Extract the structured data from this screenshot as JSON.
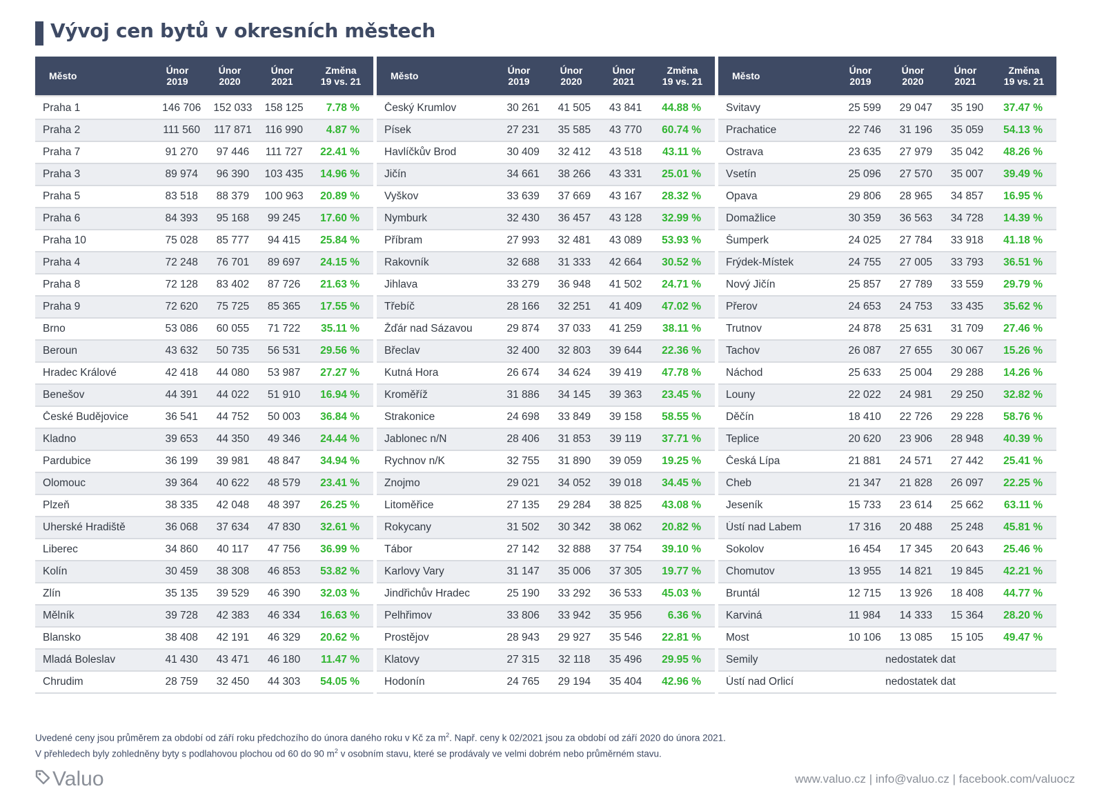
{
  "title": "Vývoj cen bytů v okresních městech",
  "headers": {
    "city": "Město",
    "y2019": [
      "Únor",
      "2019"
    ],
    "y2020": [
      "Únor",
      "2020"
    ],
    "y2021": [
      "Únor",
      "2021"
    ],
    "change": [
      "Změna",
      "19 vs. 21"
    ]
  },
  "tables": [
    [
      [
        "Praha 1",
        "146 706",
        "152 033",
        "158 125",
        "7.78 %"
      ],
      [
        "Praha 2",
        "111 560",
        "117 871",
        "116 990",
        "4.87 %"
      ],
      [
        "Praha 7",
        "91 270",
        "97 446",
        "111 727",
        "22.41 %"
      ],
      [
        "Praha 3",
        "89 974",
        "96 390",
        "103 435",
        "14.96 %"
      ],
      [
        "Praha 5",
        "83 518",
        "88 379",
        "100 963",
        "20.89 %"
      ],
      [
        "Praha 6",
        "84 393",
        "95 168",
        "99 245",
        "17.60 %"
      ],
      [
        "Praha 10",
        "75 028",
        "85 777",
        "94 415",
        "25.84 %"
      ],
      [
        "Praha 4",
        "72 248",
        "76 701",
        "89 697",
        "24.15 %"
      ],
      [
        "Praha 8",
        "72 128",
        "83 402",
        "87 726",
        "21.63 %"
      ],
      [
        "Praha 9",
        "72 620",
        "75 725",
        "85 365",
        "17.55 %"
      ],
      [
        "Brno",
        "53 086",
        "60 055",
        "71 722",
        "35.11 %"
      ],
      [
        "Beroun",
        "43 632",
        "50 735",
        "56 531",
        "29.56 %"
      ],
      [
        "Hradec Králové",
        "42 418",
        "44 080",
        "53 987",
        "27.27 %"
      ],
      [
        "Benešov",
        "44 391",
        "44 022",
        "51 910",
        "16.94 %"
      ],
      [
        "České Budějovice",
        "36 541",
        "44 752",
        "50 003",
        "36.84 %"
      ],
      [
        "Kladno",
        "39 653",
        "44 350",
        "49 346",
        "24.44 %"
      ],
      [
        "Pardubice",
        "36 199",
        "39 981",
        "48 847",
        "34.94 %"
      ],
      [
        "Olomouc",
        "39 364",
        "40 622",
        "48 579",
        "23.41 %"
      ],
      [
        "Plzeň",
        "38 335",
        "42 048",
        "48 397",
        "26.25 %"
      ],
      [
        "Uherské Hradiště",
        "36 068",
        "37 634",
        "47 830",
        "32.61 %"
      ],
      [
        "Liberec",
        "34 860",
        "40 117",
        "47 756",
        "36.99 %"
      ],
      [
        "Kolín",
        "30 459",
        "38 308",
        "46 853",
        "53.82 %"
      ],
      [
        "Zlín",
        "35 135",
        "39 529",
        "46 390",
        "32.03 %"
      ],
      [
        "Mělník",
        "39 728",
        "42 383",
        "46 334",
        "16.63 %"
      ],
      [
        "Blansko",
        "38 408",
        "42 191",
        "46 329",
        "20.62 %"
      ],
      [
        "Mladá Boleslav",
        "41 430",
        "43 471",
        "46 180",
        "11.47 %"
      ],
      [
        "Chrudim",
        "28 759",
        "32 450",
        "44 303",
        "54.05 %"
      ]
    ],
    [
      [
        "Český Krumlov",
        "30 261",
        "41 505",
        "43 841",
        "44.88 %"
      ],
      [
        "Písek",
        "27 231",
        "35 585",
        "43 770",
        "60.74 %"
      ],
      [
        "Havlíčkův Brod",
        "30 409",
        "32 412",
        "43 518",
        "43.11 %"
      ],
      [
        "Jičín",
        "34 661",
        "38 266",
        "43 331",
        "25.01 %"
      ],
      [
        "Vyškov",
        "33 639",
        "37 669",
        "43 167",
        "28.32 %"
      ],
      [
        "Nymburk",
        "32 430",
        "36 457",
        "43 128",
        "32.99 %"
      ],
      [
        "Příbram",
        "27 993",
        "32 481",
        "43 089",
        "53.93 %"
      ],
      [
        "Rakovník",
        "32 688",
        "31 333",
        "42 664",
        "30.52 %"
      ],
      [
        "Jihlava",
        "33 279",
        "36 948",
        "41 502",
        "24.71 %"
      ],
      [
        "Třebíč",
        "28 166",
        "32 251",
        "41 409",
        "47.02 %"
      ],
      [
        "Žďár nad Sázavou",
        "29 874",
        "37 033",
        "41 259",
        "38.11 %"
      ],
      [
        "Břeclav",
        "32 400",
        "32 803",
        "39 644",
        "22.36 %"
      ],
      [
        "Kutná Hora",
        "26 674",
        "34 624",
        "39 419",
        "47.78 %"
      ],
      [
        "Kroměříž",
        "31 886",
        "34 145",
        "39 363",
        "23.45 %"
      ],
      [
        "Strakonice",
        "24 698",
        "33 849",
        "39 158",
        "58.55 %"
      ],
      [
        "Jablonec n/N",
        "28 406",
        "31 853",
        "39 119",
        "37.71 %"
      ],
      [
        "Rychnov n/K",
        "32 755",
        "31 890",
        "39 059",
        "19.25 %"
      ],
      [
        "Znojmo",
        "29 021",
        "34 052",
        "39 018",
        "34.45 %"
      ],
      [
        "Litoměřice",
        "27 135",
        "29 284",
        "38 825",
        "43.08 %"
      ],
      [
        "Rokycany",
        "31 502",
        "30 342",
        "38 062",
        "20.82 %"
      ],
      [
        "Tábor",
        "27 142",
        "32 888",
        "37 754",
        "39.10 %"
      ],
      [
        "Karlovy Vary",
        "31 147",
        "35 006",
        "37 305",
        "19.77 %"
      ],
      [
        "Jindřichův Hradec",
        "25 190",
        "33 292",
        "36 533",
        "45.03 %"
      ],
      [
        "Pelhřimov",
        "33 806",
        "33 942",
        "35 956",
        "6.36 %"
      ],
      [
        "Prostějov",
        "28 943",
        "29 927",
        "35 546",
        "22.81 %"
      ],
      [
        "Klatovy",
        "27 315",
        "32 118",
        "35 496",
        "29.95 %"
      ],
      [
        "Hodonín",
        "24 765",
        "29 194",
        "35 404",
        "42.96 %"
      ]
    ],
    [
      [
        "Svitavy",
        "25 599",
        "29 047",
        "35 190",
        "37.47 %"
      ],
      [
        "Prachatice",
        "22 746",
        "31 196",
        "35 059",
        "54.13 %"
      ],
      [
        "Ostrava",
        "23 635",
        "27 979",
        "35 042",
        "48.26 %"
      ],
      [
        "Vsetín",
        "25 096",
        "27 570",
        "35 007",
        "39.49 %"
      ],
      [
        "Opava",
        "29 806",
        "28 965",
        "34 857",
        "16.95 %"
      ],
      [
        "Domažlice",
        "30 359",
        "36 563",
        "34 728",
        "14.39 %"
      ],
      [
        "Šumperk",
        "24 025",
        "27 784",
        "33 918",
        "41.18 %"
      ],
      [
        "Frýdek-Místek",
        "24 755",
        "27 005",
        "33 793",
        "36.51 %"
      ],
      [
        "Nový Jičín",
        "25 857",
        "27 789",
        "33 559",
        "29.79 %"
      ],
      [
        "Přerov",
        "24 653",
        "24 753",
        "33 435",
        "35.62 %"
      ],
      [
        "Trutnov",
        "24 878",
        "25 631",
        "31 709",
        "27.46 %"
      ],
      [
        "Tachov",
        "26 087",
        "27 655",
        "30 067",
        "15.26 %"
      ],
      [
        "Náchod",
        "25 633",
        "25 004",
        "29 288",
        "14.26 %"
      ],
      [
        "Louny",
        "22 022",
        "24 981",
        "29 250",
        "32.82 %"
      ],
      [
        "Děčín",
        "18 410",
        "22 726",
        "29 228",
        "58.76 %"
      ],
      [
        "Teplice",
        "20 620",
        "23 906",
        "28 948",
        "40.39 %"
      ],
      [
        "Česká Lípa",
        "21 881",
        "24 571",
        "27 442",
        "25.41 %"
      ],
      [
        "Cheb",
        "21 347",
        "21 828",
        "26 097",
        "22.25 %"
      ],
      [
        "Jeseník",
        "15 733",
        "23 614",
        "25 662",
        "63.11 %"
      ],
      [
        "Ústí nad Labem",
        "17 316",
        "20 488",
        "25 248",
        "45.81 %"
      ],
      [
        "Sokolov",
        "16 454",
        "17 345",
        "20 643",
        "25.46 %"
      ],
      [
        "Chomutov",
        "13 955",
        "14 821",
        "19 845",
        "42.21 %"
      ],
      [
        "Bruntál",
        "12 715",
        "13 926",
        "18 408",
        "44.77 %"
      ],
      [
        "Karviná",
        "11 984",
        "14 333",
        "15 364",
        "28.20 %"
      ],
      [
        "Most",
        "10 106",
        "13 085",
        "15 105",
        "49.47 %"
      ],
      [
        "Semily",
        "nedostatek dat"
      ],
      [
        "Ústí nad Orlicí",
        "nedostatek dat"
      ]
    ]
  ],
  "notes": {
    "line1_a": "Uvedené ceny jsou průměrem za období od září roku předchozího do února daného roku v Kč za m",
    "line1_sup": "2",
    "line1_b": ". Např. ceny k 02/2021 jsou za období od září 2020 do února 2021.",
    "line2_a": "V přehledech byly zohledněny byty s podlahovou plochou od 60 do 90 m",
    "line2_sup": "2",
    "line2_b": " v osobním stavu, které se prodávaly ve velmi dobrém nebo průměrném stavu."
  },
  "logo_text": "Valuo",
  "logo_icon": "tag-icon",
  "footer": "www.valuo.cz | info@valuo.cz | facebook.com/valuocz",
  "colors": {
    "header_bg": "#3e4a64",
    "positive": "#2fb52f",
    "alt_row": "#eceef2"
  }
}
